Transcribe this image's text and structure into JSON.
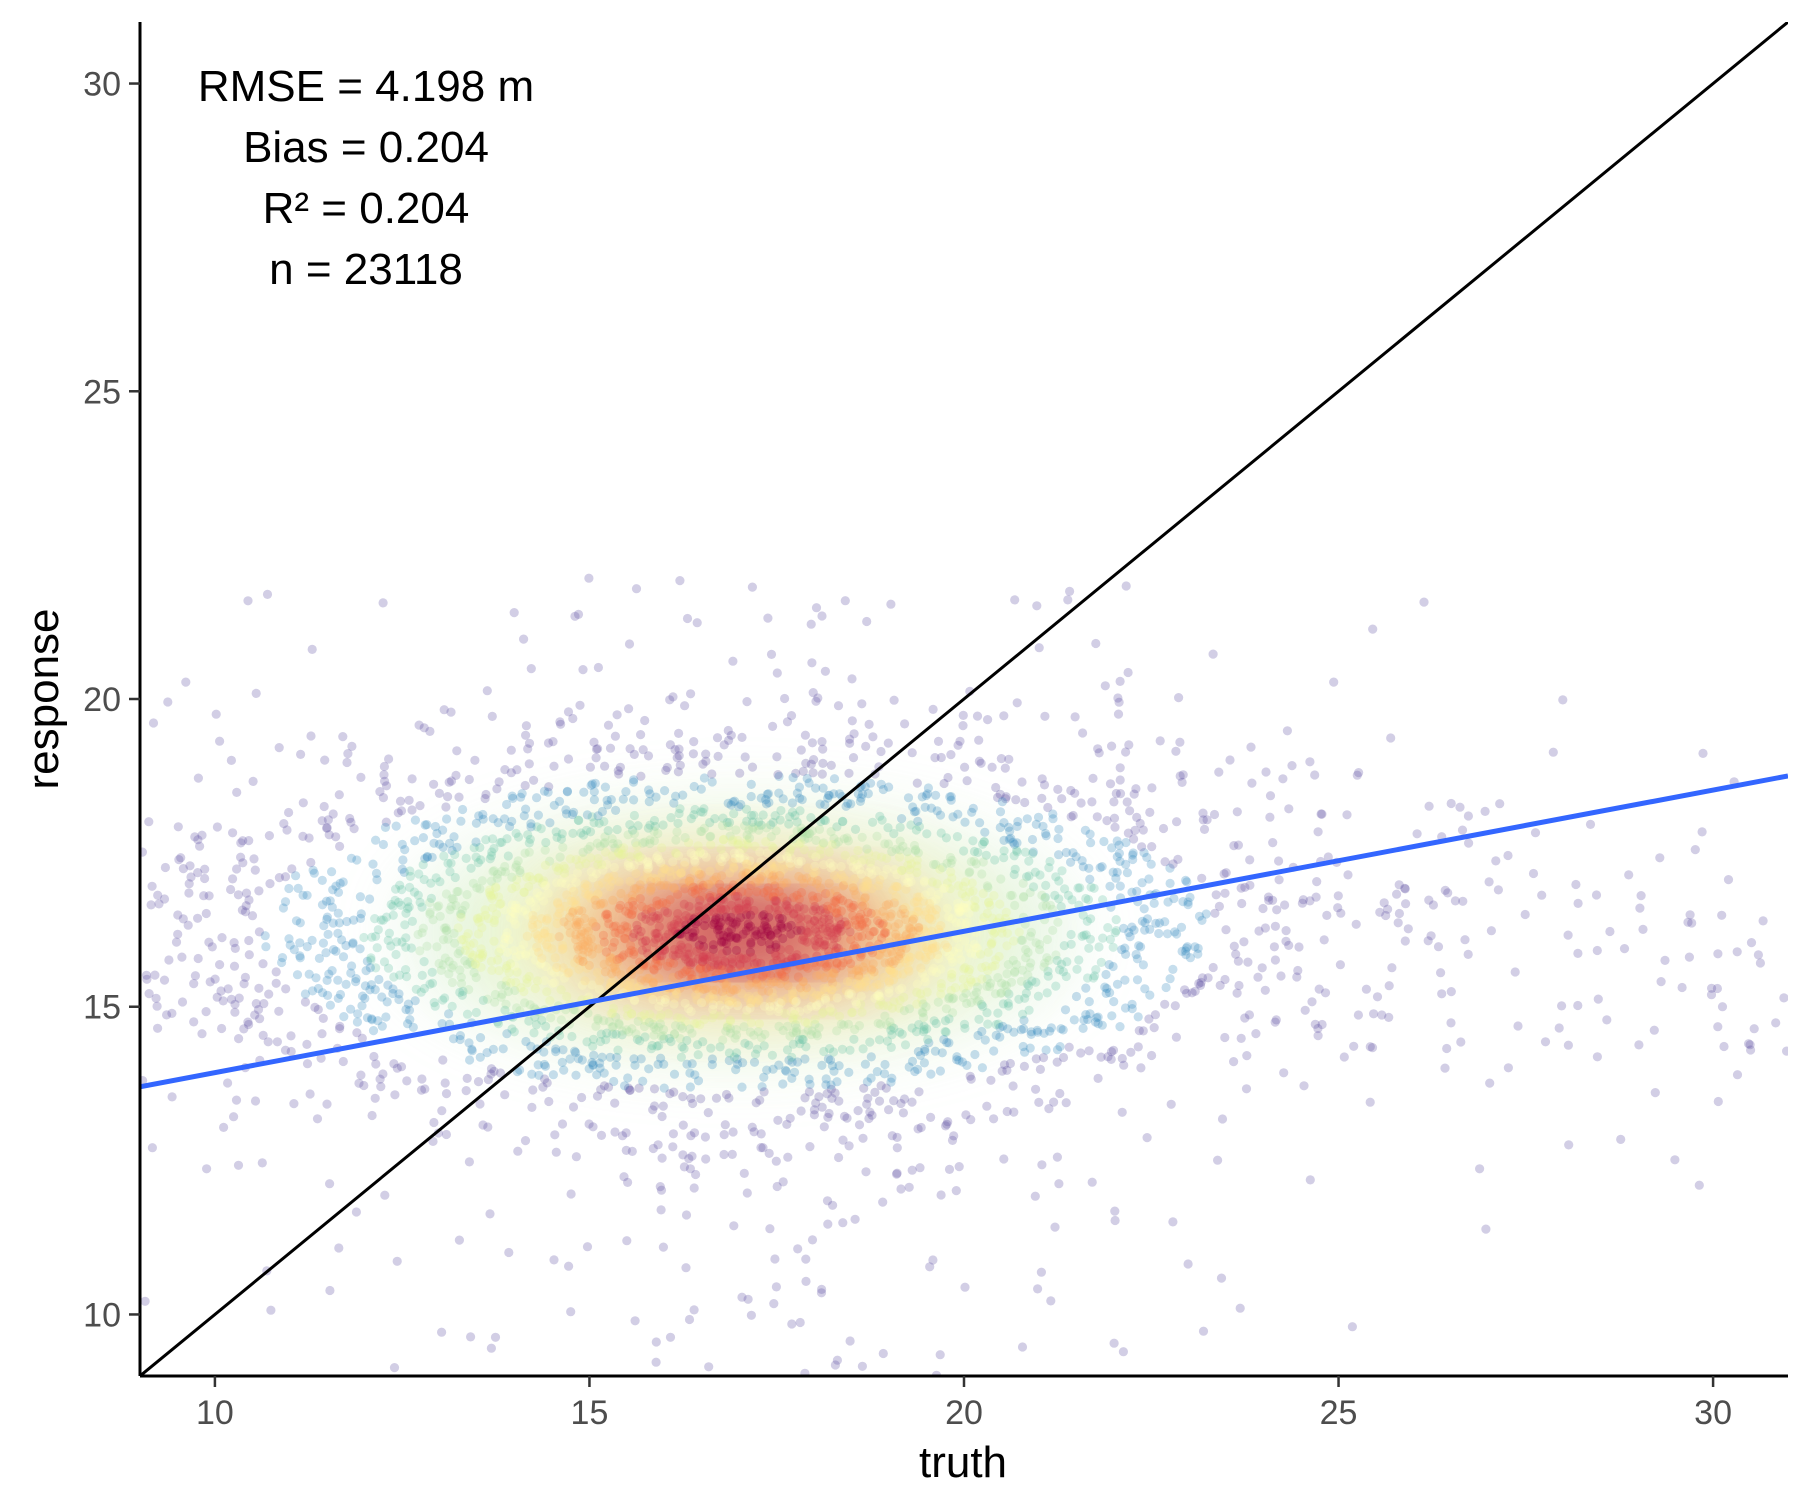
{
  "chart_data": {
    "type": "scatter",
    "title": "",
    "xlabel": "truth",
    "ylabel": "response",
    "xlim": [
      9,
      31
    ],
    "ylim": [
      9,
      31
    ],
    "x_ticks": [
      10,
      15,
      20,
      25,
      30
    ],
    "y_ticks": [
      10,
      15,
      20,
      25,
      30
    ],
    "grid": false,
    "legend": "none",
    "point_coloring": "2D density (Spectral palette, low to high)",
    "density_colors": [
      "#5e4fa2",
      "#3288bd",
      "#66c2a5",
      "#abdda4",
      "#e6f598",
      "#ffffbf",
      "#fee08b",
      "#fdae61",
      "#f46d43",
      "#d53e4f",
      "#9e0142"
    ],
    "cloud": {
      "n_points": 23118,
      "center": [
        17.0,
        16.2
      ],
      "x_range_main": [
        9,
        25
      ],
      "y_range_main": [
        10,
        21
      ]
    },
    "lines": [
      {
        "kind": "identity (1:1)",
        "x": [
          9,
          31
        ],
        "y": [
          9,
          31
        ],
        "color": "#000000"
      },
      {
        "kind": "linear fit",
        "x": [
          9,
          31
        ],
        "y": [
          13.7,
          18.75
        ],
        "color": "#3366ff"
      }
    ],
    "annotations": [
      "RMSE = 4.198 m",
      "Bias = 0.204",
      "R² = 0.204",
      "n = 23118"
    ]
  }
}
